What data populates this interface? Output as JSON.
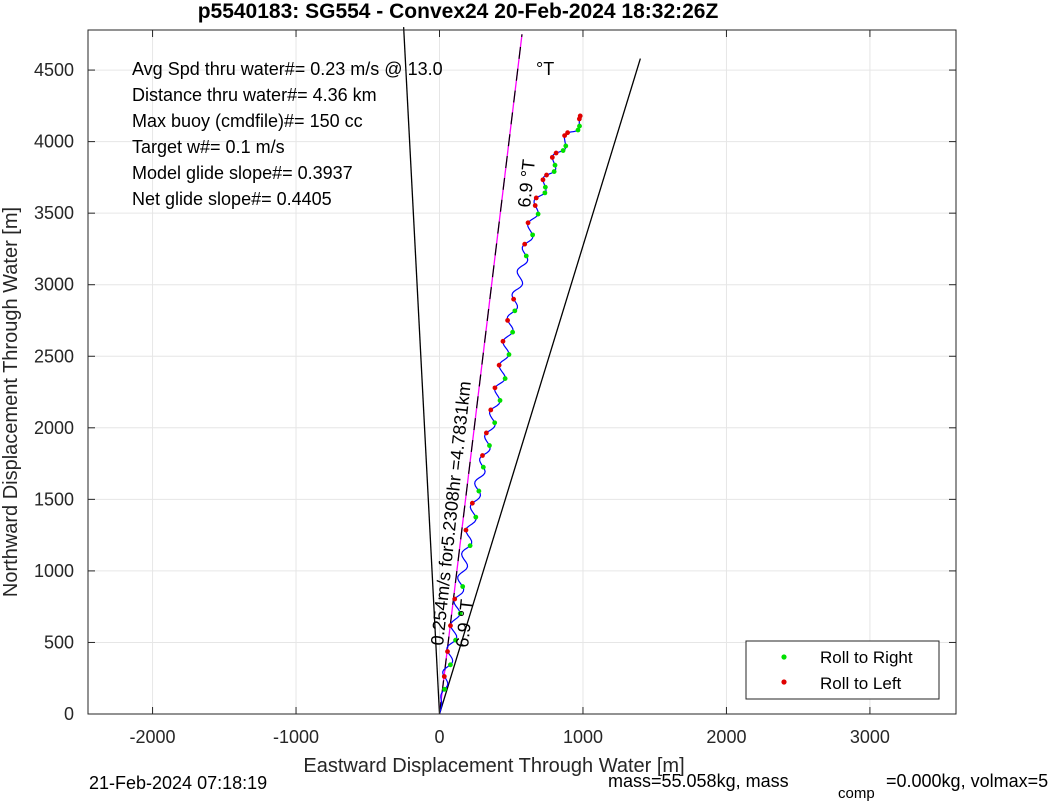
{
  "chart_data": {
    "type": "line",
    "title": "p5540183: SG554 - Convex24 20-Feb-2024 18:32:26Z",
    "xlabel": "Eastward Displacement Through Water [m]",
    "ylabel": "Northward Displacement Through Water [m]",
    "xlim": [
      -2450,
      3600
    ],
    "ylim": [
      0,
      4780
    ],
    "xticks": [
      -2000,
      -1000,
      0,
      1000,
      2000,
      3000
    ],
    "yticks": [
      0,
      500,
      1000,
      1500,
      2000,
      2500,
      3000,
      3500,
      4000,
      4500
    ],
    "grid": true,
    "legend_position": "bottom-right",
    "legend": [
      {
        "label": "Roll to Right",
        "color": "#00e000"
      },
      {
        "label": "Roll to Left",
        "color": "#e00000"
      }
    ],
    "stats_lines": [
      "Avg Spd thru water#=  0.23 m/s @  13.0",
      "Distance thru water#=  4.36 km",
      "Max buoy (cmdfile)#= 150 cc",
      "Target w#= 0.1 m/s",
      "Model glide slope#= 0.3937",
      "Net glide slope#= 0.4405"
    ],
    "degree_label": "°T",
    "bearing_label_top": "6.9 °T",
    "bearing_label_bottom": "6.9 °T",
    "track_label": "0.254m/s for5.2308hr =4.7831km",
    "reference_lines": [
      {
        "name": "left-bound",
        "x": [
          0,
          -250
        ],
        "y": [
          0,
          4800
        ],
        "color": "#000000"
      },
      {
        "name": "right-bound",
        "x": [
          0,
          1400
        ],
        "y": [
          0,
          4580
        ],
        "color": "#000000"
      },
      {
        "name": "heading",
        "x": [
          0,
          575
        ],
        "y": [
          0,
          4750
        ],
        "color": "#ff00ff",
        "dashed_overlay": true
      }
    ],
    "track": {
      "color": "#0000ff",
      "x": [
        0,
        45,
        90,
        130,
        175,
        230,
        280,
        330,
        380,
        430,
        470,
        510,
        560,
        610,
        660,
        710,
        760,
        810,
        860,
        910,
        960,
        1000
      ],
      "y": [
        0,
        260,
        520,
        800,
        1080,
        1380,
        1650,
        1880,
        2120,
        2350,
        2600,
        2820,
        3050,
        3280,
        3500,
        3650,
        3760,
        3880,
        3980,
        4050,
        4120,
        4160
      ],
      "wave_amplitude": 28
    },
    "footer_left": "21-Feb-2024 07:18:19",
    "footer_right": "mass=55.058kg, mass",
    "footer_sub": "comp",
    "footer_right2": "=0.000kg, volmax=5"
  }
}
